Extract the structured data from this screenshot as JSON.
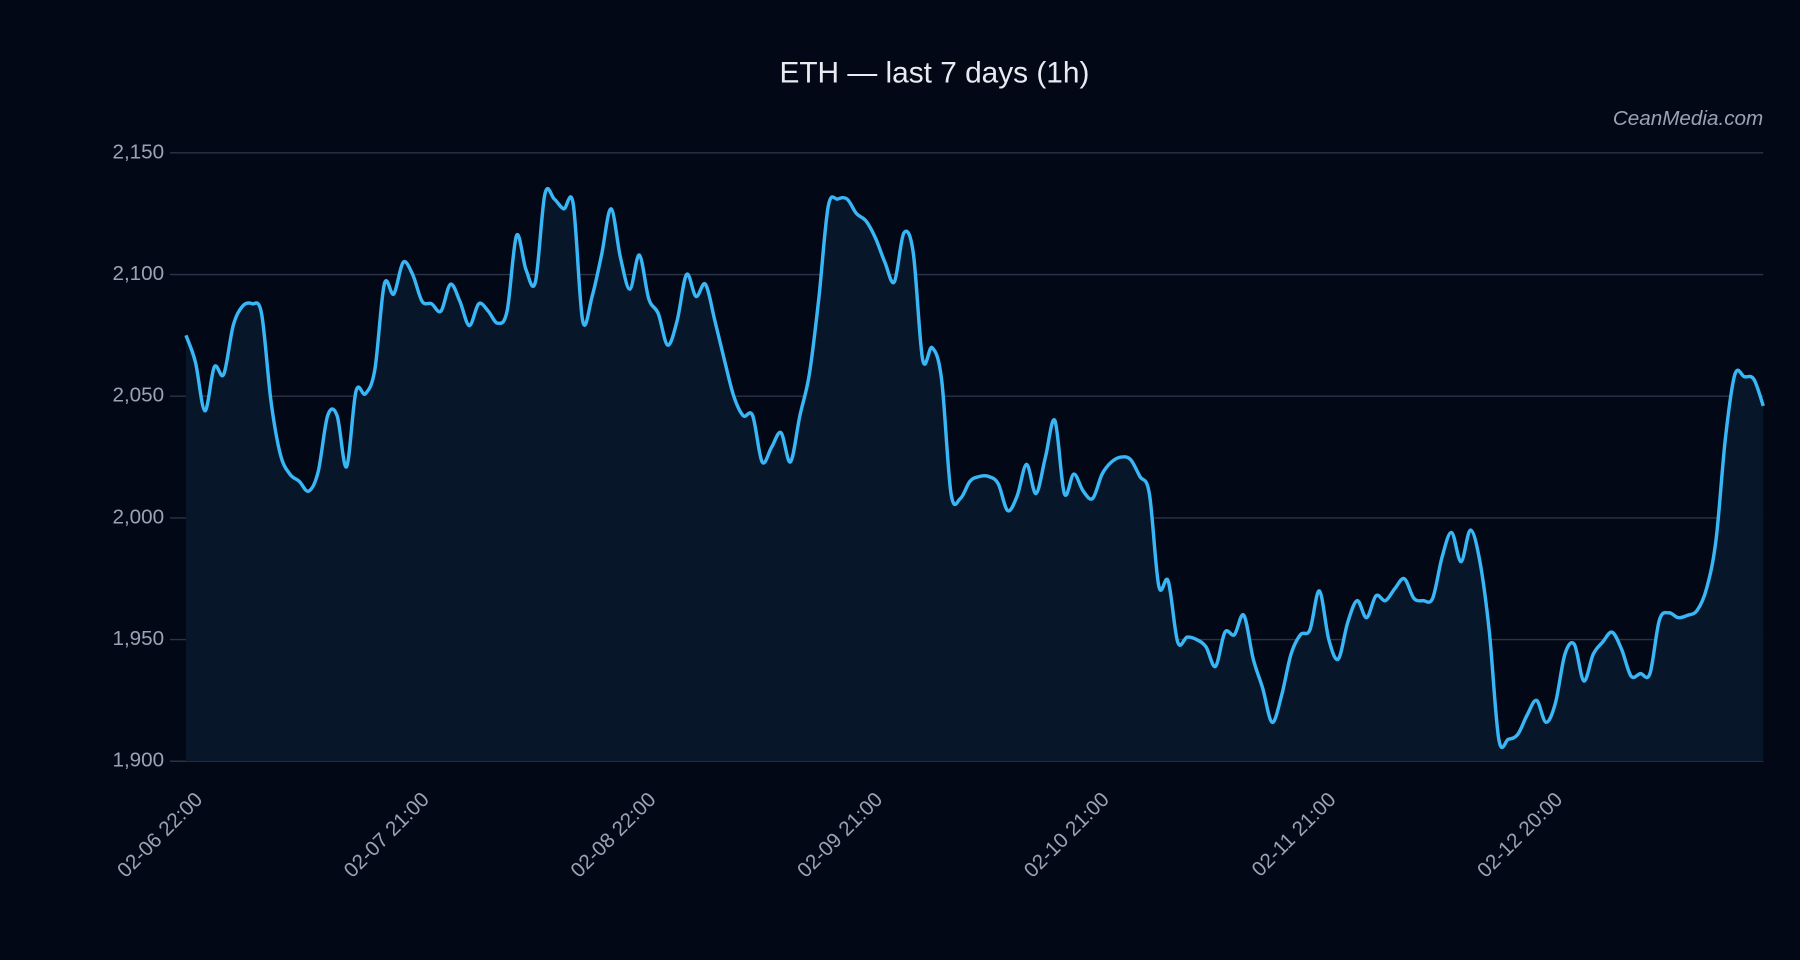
{
  "chart_data": {
    "type": "line",
    "title": "ETH — last 7 days (1h)",
    "watermark": "CeanMedia.com",
    "categories": [
      "02-06 22:00",
      null,
      null,
      null,
      null,
      null,
      null,
      null,
      null,
      null,
      null,
      null,
      null,
      null,
      null,
      null,
      null,
      null,
      null,
      null,
      null,
      null,
      null,
      null,
      "02-07 21:00",
      null,
      null,
      null,
      null,
      null,
      null,
      null,
      null,
      null,
      null,
      null,
      null,
      null,
      null,
      null,
      null,
      null,
      null,
      null,
      null,
      null,
      null,
      null,
      "02-08 22:00",
      null,
      null,
      null,
      null,
      null,
      null,
      null,
      null,
      null,
      null,
      null,
      null,
      null,
      null,
      null,
      null,
      null,
      null,
      null,
      null,
      null,
      null,
      null,
      "02-09 21:00",
      null,
      null,
      null,
      null,
      null,
      null,
      null,
      null,
      null,
      null,
      null,
      null,
      null,
      null,
      null,
      null,
      null,
      null,
      null,
      null,
      null,
      null,
      null,
      "02-10 21:00",
      null,
      null,
      null,
      null,
      null,
      null,
      null,
      null,
      null,
      null,
      null,
      null,
      null,
      null,
      null,
      null,
      null,
      null,
      null,
      null,
      null,
      null,
      null,
      "02-11 21:00",
      null,
      null,
      null,
      null,
      null,
      null,
      null,
      null,
      null,
      null,
      null,
      null,
      null,
      null,
      null,
      null,
      null,
      null,
      null,
      null,
      null,
      null,
      null,
      "02-12 20:00",
      null,
      null,
      null,
      null,
      null,
      null,
      null,
      null,
      null,
      null,
      null,
      null,
      null,
      null,
      null,
      null,
      null,
      null,
      null,
      null,
      null,
      null,
      null
    ],
    "series": [
      {
        "name": "ETH",
        "color": "#38b6f5",
        "values": [
          2075,
          2064,
          2044,
          2062,
          2059,
          2079,
          2087,
          2088,
          2084,
          2048,
          2026,
          2018,
          2015,
          2011,
          2019,
          2042,
          2042,
          2021,
          2052,
          2051,
          2061,
          2096,
          2092,
          2105,
          2100,
          2089,
          2088,
          2085,
          2096,
          2089,
          2079,
          2088,
          2085,
          2080,
          2085,
          2116,
          2102,
          2097,
          2133,
          2131,
          2127,
          2129,
          2081,
          2091,
          2108,
          2127,
          2107,
          2094,
          2108,
          2090,
          2084,
          2071,
          2081,
          2100,
          2091,
          2096,
          2081,
          2065,
          2050,
          2042,
          2042,
          2023,
          2029,
          2035,
          2023,
          2042,
          2059,
          2090,
          2128,
          2131,
          2131,
          2125,
          2122,
          2115,
          2105,
          2097,
          2117,
          2109,
          2065,
          2070,
          2057,
          2010,
          2008,
          2015,
          2017,
          2017,
          2014,
          2003,
          2009,
          2022,
          2010,
          2025,
          2040,
          2010,
          2018,
          2011,
          2008,
          2018,
          2023,
          2025,
          2024,
          2017,
          2010,
          1972,
          1974,
          1949,
          1951,
          1950,
          1947,
          1939,
          1953,
          1952,
          1960,
          1942,
          1930,
          1916,
          1927,
          1944,
          1952,
          1954,
          1970,
          1950,
          1942,
          1957,
          1966,
          1959,
          1968,
          1966,
          1971,
          1975,
          1967,
          1966,
          1967,
          1984,
          1994,
          1982,
          1995,
          1982,
          1953,
          1909,
          1909,
          1911,
          1919,
          1925,
          1916,
          1924,
          1944,
          1948,
          1933,
          1944,
          1949,
          1953,
          1946,
          1935,
          1936,
          1936,
          1958,
          1961,
          1959,
          1960,
          1962,
          1971,
          1991,
          2033,
          2059,
          2058,
          2057,
          2046
        ]
      }
    ],
    "ylim": [
      1900,
      2150
    ],
    "yticks": [
      {
        "value": 1900,
        "label": "1,900"
      },
      {
        "value": 1950,
        "label": "1,950"
      },
      {
        "value": 2000,
        "label": "2,000"
      },
      {
        "value": 2050,
        "label": "2,050"
      },
      {
        "value": 2100,
        "label": "2,100"
      },
      {
        "value": 2150,
        "label": "2,150"
      }
    ],
    "grid": true,
    "fill_color": "#071629"
  }
}
